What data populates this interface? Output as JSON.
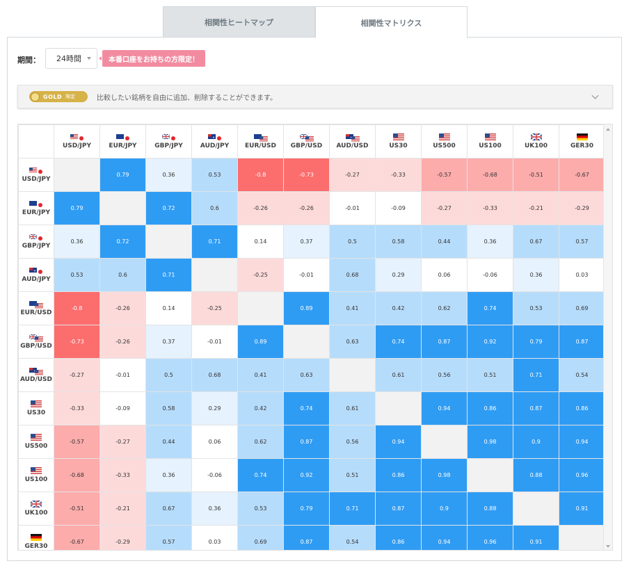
{
  "tabs": [
    {
      "label": "相関性ヒートマップ",
      "active": false
    },
    {
      "label": "相関性マトリクス",
      "active": true
    }
  ],
  "period": {
    "label": "期間：",
    "value": "24時間"
  },
  "promo": {
    "text": "本番口座をお持ちの方限定！"
  },
  "gold": {
    "badge": "GOLD",
    "badge_sub": "限定",
    "message": "比較したい銘柄を自由に追加、削除することができます。"
  },
  "colors": {
    "diag": "#f2f2f2",
    "pos_strong": "#2f9cf4",
    "pos_mid": "#b6dcfb",
    "pos_light": "#e6f2fd",
    "neg_strong": "#fc6d6d",
    "neg_mid": "#fdacac",
    "neg_light": "#fddada",
    "neutral": "#ffffff"
  },
  "matrix": {
    "symbols": [
      {
        "name": "USD/JPY",
        "flag": "usd-jpy-flag-icon"
      },
      {
        "name": "EUR/JPY",
        "flag": "eur-jpy-flag-icon"
      },
      {
        "name": "GBP/JPY",
        "flag": "gbp-jpy-flag-icon"
      },
      {
        "name": "AUD/JPY",
        "flag": "aud-jpy-flag-icon"
      },
      {
        "name": "EUR/USD",
        "flag": "eur-usd-flag-icon"
      },
      {
        "name": "GBP/USD",
        "flag": "gbp-usd-flag-icon"
      },
      {
        "name": "AUD/USD",
        "flag": "aud-usd-flag-icon"
      },
      {
        "name": "US30",
        "flag": "us-flag-icon"
      },
      {
        "name": "US500",
        "flag": "us-flag-icon"
      },
      {
        "name": "US100",
        "flag": "us-flag-icon"
      },
      {
        "name": "UK100",
        "flag": "uk-flag-icon"
      },
      {
        "name": "GER30",
        "flag": "germany-flag-icon"
      }
    ],
    "values": [
      [
        "",
        "0.79",
        "0.36",
        "0.53",
        "-0.8",
        "-0.73",
        "-0.27",
        "-0.33",
        "-0.57",
        "-0.68",
        "-0.51",
        "-0.67"
      ],
      [
        "0.79",
        "",
        "0.72",
        "0.6",
        "-0.26",
        "-0.26",
        "-0.01",
        "-0.09",
        "-0.27",
        "-0.33",
        "-0.21",
        "-0.29"
      ],
      [
        "0.36",
        "0.72",
        "",
        "0.71",
        "0.14",
        "0.37",
        "0.5",
        "0.58",
        "0.44",
        "0.36",
        "0.67",
        "0.57"
      ],
      [
        "0.53",
        "0.6",
        "0.71",
        "",
        "-0.25",
        "-0.01",
        "0.68",
        "0.29",
        "0.06",
        "-0.06",
        "0.36",
        "0.03"
      ],
      [
        "-0.8",
        "-0.26",
        "0.14",
        "-0.25",
        "",
        "0.89",
        "0.41",
        "0.42",
        "0.62",
        "0.74",
        "0.53",
        "0.69"
      ],
      [
        "-0.73",
        "-0.26",
        "0.37",
        "-0.01",
        "0.89",
        "",
        "0.63",
        "0.74",
        "0.87",
        "0.92",
        "0.79",
        "0.87"
      ],
      [
        "-0.27",
        "-0.01",
        "0.5",
        "0.68",
        "0.41",
        "0.63",
        "",
        "0.61",
        "0.56",
        "0.51",
        "0.71",
        "0.54"
      ],
      [
        "-0.33",
        "-0.09",
        "0.58",
        "0.29",
        "0.42",
        "0.74",
        "0.61",
        "",
        "0.94",
        "0.86",
        "0.87",
        "0.86"
      ],
      [
        "-0.57",
        "-0.27",
        "0.44",
        "0.06",
        "0.62",
        "0.87",
        "0.56",
        "0.94",
        "",
        "0.98",
        "0.9",
        "0.94"
      ],
      [
        "-0.68",
        "-0.33",
        "0.36",
        "-0.06",
        "0.74",
        "0.92",
        "0.51",
        "0.86",
        "0.98",
        "",
        "0.88",
        "0.96"
      ],
      [
        "-0.51",
        "-0.21",
        "0.67",
        "0.36",
        "0.53",
        "0.79",
        "0.71",
        "0.87",
        "0.9",
        "0.88",
        "",
        "0.91"
      ],
      [
        "-0.67",
        "-0.29",
        "0.57",
        "0.03",
        "0.69",
        "0.87",
        "0.54",
        "0.86",
        "0.94",
        "0.96",
        "0.91",
        ""
      ]
    ]
  }
}
